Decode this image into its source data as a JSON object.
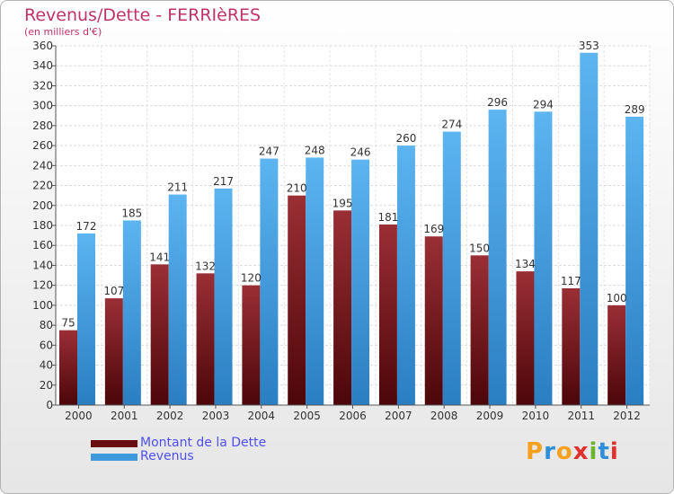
{
  "chart_data": {
    "type": "bar",
    "title": "Revenus/Dette - FERRIèRES",
    "subtitle": "(en milliers d'€)",
    "categories": [
      "2000",
      "2001",
      "2002",
      "2003",
      "2004",
      "2005",
      "2006",
      "2007",
      "2008",
      "2009",
      "2010",
      "2011",
      "2012"
    ],
    "series": [
      {
        "name": "Montant de la Dette",
        "color": "#7a1a1e",
        "values": [
          75,
          107,
          141,
          132,
          120,
          210,
          195,
          181,
          169,
          150,
          134,
          117,
          100
        ]
      },
      {
        "name": "Revenus",
        "color": "#3d98dc",
        "values": [
          172,
          185,
          211,
          217,
          247,
          248,
          246,
          260,
          274,
          296,
          294,
          353,
          289
        ]
      }
    ],
    "ylim": [
      0,
      360
    ],
    "ytick_step": 20,
    "grid": true,
    "xlabel": "",
    "ylabel": "",
    "legend_position": "bottom-left"
  },
  "legend": [
    {
      "label": "Montant de la Dette",
      "color": "#6a0e12"
    },
    {
      "label": "Revenus",
      "color": "#3d98dc"
    }
  ],
  "logo": {
    "letters": [
      "P",
      "r",
      "o",
      "x",
      "i",
      "t",
      "i"
    ],
    "colors": [
      "#f5a11d",
      "#2e8fd8",
      "#f5a11d",
      "#e0312a",
      "#69b42e",
      "#2e8fd8",
      "#e0312a"
    ]
  }
}
